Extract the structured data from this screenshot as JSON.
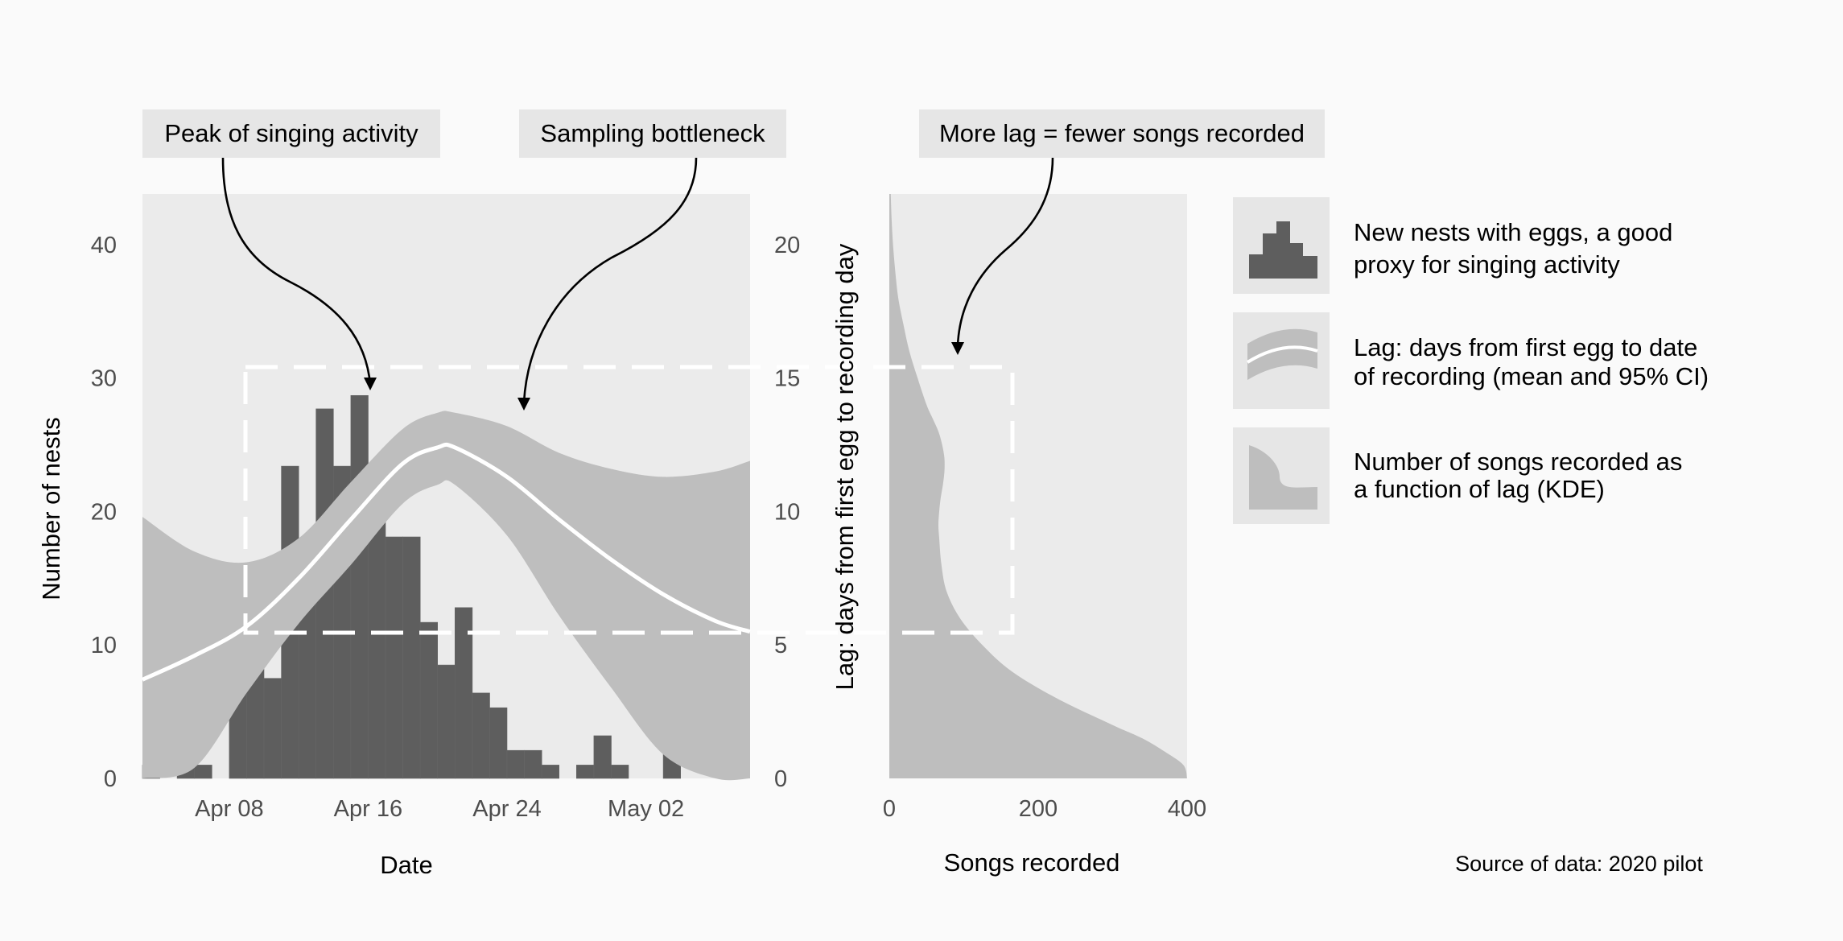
{
  "source_note": "Source of data: 2020 pilot",
  "colors": {
    "background": "#fafafa",
    "panel": "#ebebeb",
    "bars": "#5e5e5e",
    "ribbon": "#bebebe",
    "mean_line": "#ffffff",
    "kde": "#bebebe",
    "box": "#e6e6e6"
  },
  "annotations": [
    {
      "text": "Peak of singing activity"
    },
    {
      "text": "Sampling bottleneck"
    },
    {
      "text": "More lag = fewer songs recorded"
    }
  ],
  "legend": [
    {
      "icon": "histogram-icon",
      "lines": [
        "New nests with eggs, a good",
        "proxy for singing activity"
      ]
    },
    {
      "icon": "ribbon-icon",
      "lines": [
        "Lag: days from first egg to date",
        "of recording (mean and 95% CI)"
      ]
    },
    {
      "icon": "kde-icon",
      "lines": [
        "Number of songs recorded as",
        "a function of lag (KDE)"
      ]
    }
  ],
  "chart_data": [
    {
      "type": "bar",
      "xlabel": "Date",
      "ylabel": "Number of nests",
      "y2label": "Lag: days from first egg to recording day",
      "x_tick_labels": [
        "Apr 08",
        "Apr 16",
        "Apr 24",
        "May 02"
      ],
      "x_tick_dates": [
        "2020-04-08",
        "2020-04-16",
        "2020-04-24",
        "2020-05-02"
      ],
      "y_ticks": [
        0,
        10,
        20,
        30,
        40
      ],
      "y2_ticks": [
        0,
        5,
        10,
        15,
        20
      ],
      "ylim": [
        0,
        43.8
      ],
      "y2lim": [
        0,
        21.9
      ],
      "xlim": [
        "2020-04-03",
        "2020-05-08"
      ],
      "bins": [
        {
          "start": "2020-04-03",
          "value": 1
        },
        {
          "start": "2020-04-04",
          "value": 0
        },
        {
          "start": "2020-04-05",
          "value": 1
        },
        {
          "start": "2020-04-06",
          "value": 1
        },
        {
          "start": "2020-04-07",
          "value": 0
        },
        {
          "start": "2020-04-08",
          "value": 8.5
        },
        {
          "start": "2020-04-09",
          "value": 11.7
        },
        {
          "start": "2020-04-10",
          "value": 7.5
        },
        {
          "start": "2020-04-11",
          "value": 23.4
        },
        {
          "start": "2020-04-12",
          "value": 17
        },
        {
          "start": "2020-04-13",
          "value": 27.7
        },
        {
          "start": "2020-04-14",
          "value": 23.4
        },
        {
          "start": "2020-04-15",
          "value": 28.7
        },
        {
          "start": "2020-04-16",
          "value": 21.3
        },
        {
          "start": "2020-04-17",
          "value": 18.1
        },
        {
          "start": "2020-04-18",
          "value": 18.1
        },
        {
          "start": "2020-04-19",
          "value": 11.7
        },
        {
          "start": "2020-04-20",
          "value": 8.5
        },
        {
          "start": "2020-04-21",
          "value": 12.8
        },
        {
          "start": "2020-04-22",
          "value": 6.4
        },
        {
          "start": "2020-04-23",
          "value": 5.3
        },
        {
          "start": "2020-04-24",
          "value": 2.1
        },
        {
          "start": "2020-04-25",
          "value": 2.1
        },
        {
          "start": "2020-04-26",
          "value": 1
        },
        {
          "start": "2020-04-27",
          "value": 0
        },
        {
          "start": "2020-04-28",
          "value": 1
        },
        {
          "start": "2020-04-29",
          "value": 3.2
        },
        {
          "start": "2020-04-30",
          "value": 1
        },
        {
          "start": "2020-05-01",
          "value": 0
        },
        {
          "start": "2020-05-02",
          "value": 0
        },
        {
          "start": "2020-05-03",
          "value": 3.2
        }
      ],
      "lag_series": {
        "dates": [
          "2020-04-03",
          "2020-04-06",
          "2020-04-09",
          "2020-04-12",
          "2020-04-15",
          "2020-04-18",
          "2020-04-20",
          "2020-04-21",
          "2020-04-24",
          "2020-04-27",
          "2020-04-30",
          "2020-05-03",
          "2020-05-06",
          "2020-05-08"
        ],
        "mean": [
          3.7,
          4.6,
          5.7,
          7.5,
          9.7,
          11.8,
          12.4,
          12.4,
          11.3,
          9.7,
          8.2,
          6.9,
          5.9,
          5.5
        ],
        "upper": [
          9.8,
          8.5,
          8.1,
          9.0,
          11.1,
          13.1,
          13.7,
          13.7,
          13.2,
          12.2,
          11.6,
          11.3,
          11.5,
          11.9
        ],
        "lower": [
          -2.5,
          0.4,
          3.2,
          5.8,
          8.0,
          10.3,
          11.0,
          11.0,
          9.1,
          6.1,
          3.4,
          0.9,
          -0.5,
          -1.5
        ]
      }
    },
    {
      "type": "area",
      "xlabel": "Songs recorded",
      "x_ticks": [
        0,
        200,
        400
      ],
      "xlim": [
        0,
        400
      ],
      "ylim": [
        0,
        21.9
      ],
      "kde": {
        "lag": [
          0,
          0.5,
          1,
          1.5,
          2,
          3,
          4,
          5,
          6,
          7,
          8,
          9,
          9.5,
          10,
          10.5,
          11,
          11.5,
          12,
          12.5,
          13,
          13.5,
          14,
          15,
          16,
          17,
          18,
          19,
          20,
          21,
          21.9
        ],
        "count": [
          400,
          395,
          370,
          340,
          300,
          225,
          165,
          125,
          95,
          77,
          70,
          67,
          66,
          67,
          69,
          72,
          74,
          74,
          71,
          66,
          58,
          50,
          38,
          27,
          19,
          12,
          8,
          5,
          3,
          2
        ]
      }
    }
  ]
}
